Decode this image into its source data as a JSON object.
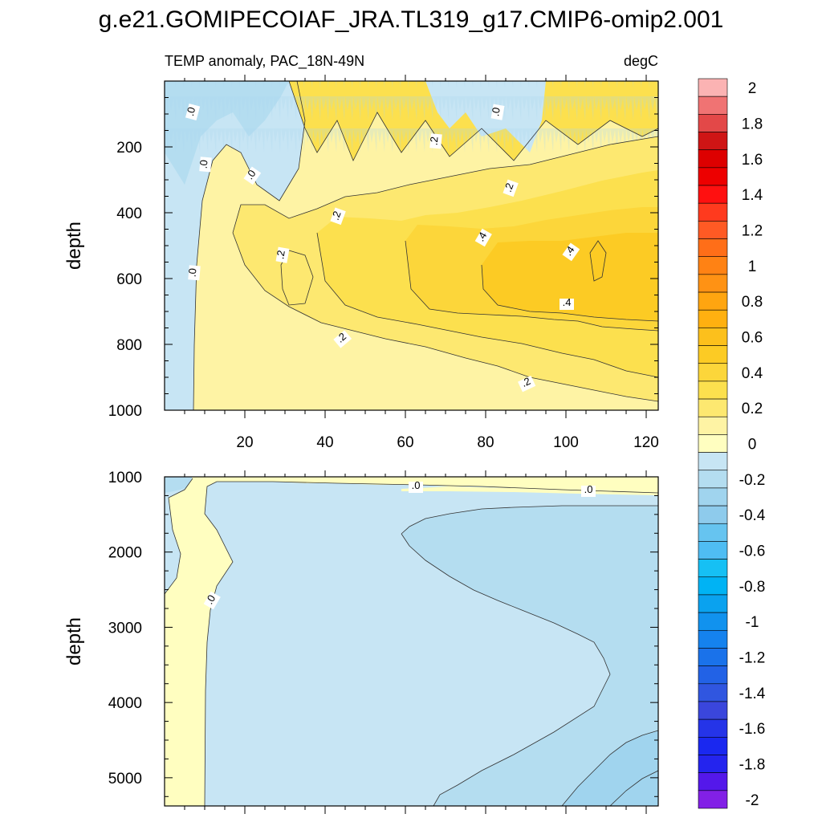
{
  "chart_data": {
    "type": "contour",
    "title": "g.e21.GOMIPECOIAF_JRA.TL319_g17.CMIP6-omip2.001",
    "subtitle_left": "TEMP anomaly, PAC_18N-49N",
    "subtitle_right": "degC",
    "colorbar": {
      "labels": [
        "2",
        "1.8",
        "1.6",
        "1.4",
        "1.2",
        "1",
        "0.8",
        "0.6",
        "0.4",
        "0.2",
        "0",
        "-0.2",
        "-0.4",
        "-0.6",
        "-0.8",
        "-1",
        "-1.2",
        "-1.4",
        "-1.6",
        "-1.8",
        "-2"
      ],
      "range": [
        -2,
        2
      ],
      "interval": 0.1,
      "colors": [
        "#fbb3b3",
        "#f07373",
        "#e34848",
        "#cf1515",
        "#dd0000",
        "#ed0000",
        "#ff1010",
        "#ff3a1e",
        "#ff5a24",
        "#ff6e18",
        "#ff8214",
        "#ff9214",
        "#ffa510",
        "#ffb010",
        "#fcc01c",
        "#fccb24",
        "#fcd63a",
        "#fce04e",
        "#fde870",
        "#fef3a4",
        "#fffec0",
        "#c7e5f4",
        "#b4ddf0",
        "#a0d4ee",
        "#8ecbec",
        "#66c4f0",
        "#4fbdf3",
        "#16c0f4",
        "#00b3f4",
        "#0aa2ef",
        "#1192ee",
        "#1582ee",
        "#1a72ea",
        "#2262e6",
        "#3056e0",
        "#3a46dc",
        "#2534e8",
        "#1a28f0",
        "#2424ee",
        "#5418ea",
        "#8220e6"
      ]
    },
    "upper_panel": {
      "name": "upper-panel",
      "ylabel": "depth",
      "yticks": [
        "200",
        "400",
        "600",
        "800",
        "1000"
      ],
      "xticks": [
        "20",
        "40",
        "60",
        "80",
        "100",
        "120"
      ],
      "xlim": [
        0,
        123
      ],
      "ylim": [
        0,
        1000
      ],
      "contour_labels": [
        ".0",
        ".0",
        ".0",
        ".0",
        ".0",
        ".2",
        ".2",
        ".2",
        ".2",
        ".2",
        ".2",
        ".4",
        ".4",
        ".4"
      ]
    },
    "lower_panel": {
      "name": "lower-panel",
      "ylabel": "depth",
      "yticks": [
        "1000",
        "2000",
        "3000",
        "4000",
        "5000"
      ],
      "xlim": [
        0,
        123
      ],
      "ylim": [
        1000,
        5375
      ],
      "contour_labels": [
        ".0",
        ".0",
        ".0"
      ]
    }
  }
}
